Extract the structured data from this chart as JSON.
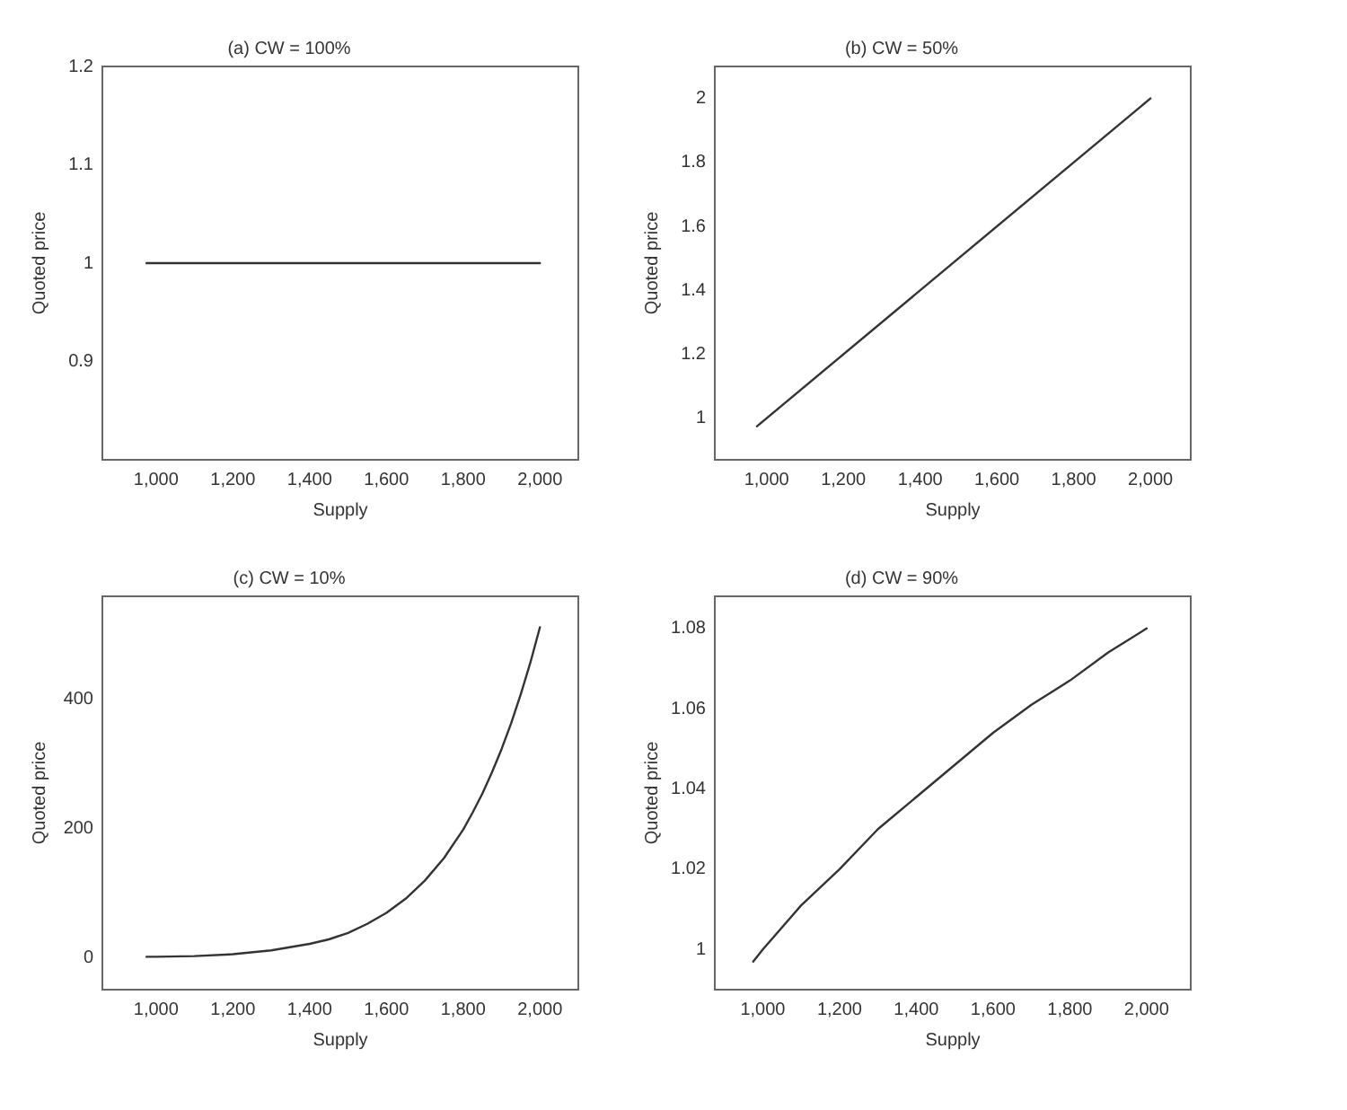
{
  "chart_data": [
    {
      "type": "line",
      "title": "(a) CW = 100%",
      "xlabel": "Supply",
      "ylabel": "Quoted price",
      "x": [
        975,
        2000
      ],
      "series": [
        {
          "color": "#333333",
          "values": [
            1,
            1
          ]
        }
      ],
      "xlim": [
        860,
        2100
      ],
      "ylim": [
        0.8,
        1.2
      ],
      "xticks": [
        {
          "value": 1000,
          "label": "1,000"
        },
        {
          "value": 1200,
          "label": "1,200"
        },
        {
          "value": 1400,
          "label": "1,400"
        },
        {
          "value": 1600,
          "label": "1,600"
        },
        {
          "value": 1800,
          "label": "1,800"
        },
        {
          "value": 2000,
          "label": "2,000"
        }
      ],
      "yticks": [
        0.9,
        1,
        1.1,
        1.2
      ],
      "marker": "none"
    },
    {
      "type": "line",
      "title": "(b) CW = 50%",
      "xlabel": "Supply",
      "ylabel": "Quoted price",
      "x": [
        975,
        2000
      ],
      "series": [
        {
          "color": "#333333",
          "values": [
            0.975,
            2
          ]
        }
      ],
      "xlim": [
        865,
        2105
      ],
      "ylim": [
        0.87,
        2.1
      ],
      "xticks": [
        {
          "value": 1000,
          "label": "1,000"
        },
        {
          "value": 1200,
          "label": "1,200"
        },
        {
          "value": 1400,
          "label": "1,400"
        },
        {
          "value": 1600,
          "label": "1,600"
        },
        {
          "value": 1800,
          "label": "1,800"
        },
        {
          "value": 2000,
          "label": "2,000"
        }
      ],
      "yticks": [
        1,
        1.2,
        1.4,
        1.6,
        1.8,
        2
      ],
      "marker": "none"
    },
    {
      "type": "line",
      "title": "(c) CW = 10%",
      "xlabel": "Supply",
      "ylabel": "Quoted price",
      "x": [
        975,
        1000,
        1100,
        1200,
        1300,
        1400,
        1450,
        1500,
        1550,
        1600,
        1650,
        1700,
        1750,
        1800,
        1825,
        1850,
        1875,
        1900,
        1925,
        1950,
        1975,
        2000
      ],
      "series": [
        {
          "color": "#333333",
          "values": [
            1,
            1,
            2,
            5,
            11,
            21,
            28,
            38,
            52,
            69,
            91,
            119,
            154,
            198,
            225,
            254,
            287,
            323,
            363,
            408,
            457,
            512
          ]
        }
      ],
      "xlim": [
        860,
        2100
      ],
      "ylim": [
        -50,
        560
      ],
      "xticks": [
        {
          "value": 1000,
          "label": "1,000"
        },
        {
          "value": 1200,
          "label": "1,200"
        },
        {
          "value": 1400,
          "label": "1,400"
        },
        {
          "value": 1600,
          "label": "1,600"
        },
        {
          "value": 1800,
          "label": "1,800"
        },
        {
          "value": 2000,
          "label": "2,000"
        }
      ],
      "yticks": [
        0,
        200,
        400
      ],
      "marker": "none"
    },
    {
      "type": "line",
      "title": "(d) CW = 90%",
      "xlabel": "Supply",
      "ylabel": "Quoted price",
      "x": [
        975,
        1000,
        1100,
        1200,
        1300,
        1400,
        1500,
        1600,
        1700,
        1800,
        1900,
        2000
      ],
      "series": [
        {
          "color": "#333333",
          "values": [
            0.997,
            1,
            1.011,
            1.02,
            1.03,
            1.038,
            1.046,
            1.054,
            1.061,
            1.067,
            1.074,
            1.08
          ]
        }
      ],
      "xlim": [
        875,
        2115
      ],
      "ylim": [
        0.99,
        1.088
      ],
      "xticks": [
        {
          "value": 1000,
          "label": "1,000"
        },
        {
          "value": 1200,
          "label": "1,200"
        },
        {
          "value": 1400,
          "label": "1,400"
        },
        {
          "value": 1600,
          "label": "1,600"
        },
        {
          "value": 1800,
          "label": "1,800"
        },
        {
          "value": 2000,
          "label": "2,000"
        }
      ],
      "yticks": [
        1,
        1.02,
        1.04,
        1.06,
        1.08
      ],
      "marker": "none"
    }
  ]
}
